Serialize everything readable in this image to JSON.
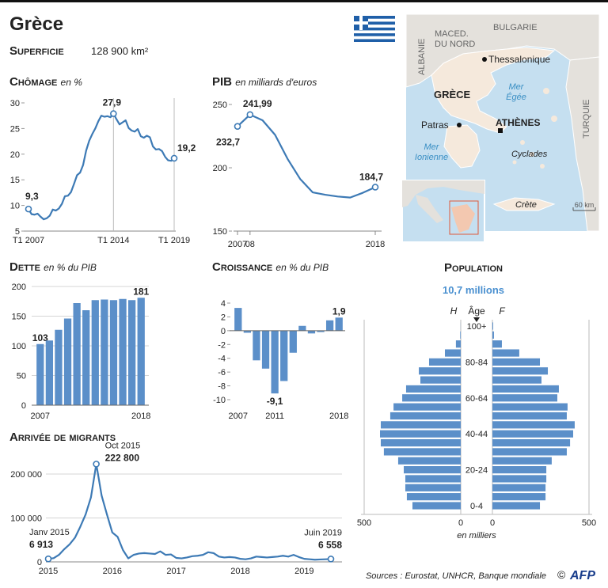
{
  "title": "Grèce",
  "area_label": "Superficie",
  "area_value": "128 900 km²",
  "map": {
    "north_macedonia": [
      "MACED.",
      "DU NORD"
    ],
    "bulgaria": "BULGARIE",
    "albania": "ALBANIE",
    "turkey": "TURQUIE",
    "greece": "GRÈCE",
    "thessaloniki": "Thessalonique",
    "patras": "Patras",
    "athens": "ATHÈNES",
    "aegean": [
      "Mer",
      "Égée"
    ],
    "ionian": [
      "Mer",
      "Ionienne"
    ],
    "cyclades": "Cyclades",
    "crete": "Crète",
    "scale": "60 km"
  },
  "chart_data": [
    {
      "type": "line",
      "title": "Chômage",
      "subtitle": "en %",
      "color": "#3d7ab5",
      "categories": [
        "T1 2007",
        null,
        null,
        null,
        null,
        null,
        null,
        null,
        null,
        null,
        null,
        null,
        null,
        null,
        null,
        null,
        null,
        null,
        null,
        null,
        null,
        null,
        null,
        null,
        null,
        null,
        null,
        null,
        "T1 2014",
        null,
        null,
        null,
        null,
        null,
        null,
        null,
        null,
        null,
        null,
        null,
        null,
        null,
        null,
        null,
        null,
        null,
        null,
        null,
        "T1 2019"
      ],
      "values": [
        9.3,
        8.3,
        8.2,
        8.4,
        7.8,
        7.3,
        7.5,
        8.0,
        9.2,
        9.0,
        9.4,
        10.3,
        11.8,
        11.9,
        12.6,
        14.2,
        15.9,
        16.4,
        17.9,
        20.7,
        22.6,
        23.9,
        25.0,
        26.4,
        27.5,
        27.3,
        27.4,
        27.2,
        27.9,
        26.8,
        25.8,
        26.2,
        26.6,
        25.1,
        24.6,
        24.4,
        24.9,
        23.5,
        23.2,
        23.6,
        23.3,
        21.5,
        20.9,
        21.0,
        20.6,
        19.5,
        18.8,
        18.7,
        19.2
      ],
      "value_labels": [
        "9,3",
        null,
        null,
        null,
        null,
        null,
        null,
        null,
        null,
        null,
        null,
        null,
        null,
        null,
        null,
        null,
        null,
        null,
        null,
        null,
        null,
        null,
        null,
        null,
        null,
        null,
        null,
        null,
        "27,9",
        null,
        null,
        null,
        null,
        null,
        null,
        null,
        null,
        null,
        null,
        null,
        null,
        null,
        null,
        null,
        null,
        null,
        null,
        null,
        "19,2"
      ],
      "ylim": [
        5,
        30
      ],
      "yticks": [
        5,
        10,
        15,
        20,
        25,
        30
      ],
      "grid": false
    },
    {
      "type": "line",
      "title": "PIB",
      "subtitle": "en milliards d'euros",
      "color": "#3d7ab5",
      "x": [
        2007,
        2008,
        2009,
        2010,
        2011,
        2012,
        2013,
        2014,
        2015,
        2016,
        2017,
        2018
      ],
      "values": [
        232.7,
        241.99,
        237.5,
        226,
        207,
        191.2,
        180.6,
        178.7,
        177.3,
        176.5,
        180.2,
        184.7
      ],
      "value_labels": [
        "232,7",
        "241,99",
        null,
        null,
        null,
        null,
        null,
        null,
        null,
        null,
        null,
        "184,7"
      ],
      "xlim": [
        2007,
        2018
      ],
      "xticks": [
        2007,
        {
          "value": 2008,
          "label": "08"
        },
        2018
      ],
      "ylim": [
        150,
        250
      ],
      "yticks": [
        150,
        200,
        250
      ],
      "grid": false
    },
    {
      "type": "bar",
      "title": "Dette",
      "subtitle": "en % du PIB",
      "color": "#5b8fc9",
      "categories": [
        "2007",
        null,
        null,
        null,
        null,
        null,
        null,
        null,
        null,
        null,
        null,
        "2018"
      ],
      "values": [
        103,
        109,
        127,
        146,
        172,
        160,
        177,
        178,
        177,
        179,
        177,
        181
      ],
      "value_labels": [
        "103",
        null,
        null,
        null,
        null,
        null,
        null,
        null,
        null,
        null,
        null,
        "181"
      ],
      "ylim": [
        0,
        200
      ],
      "yticks": [
        0,
        50,
        100,
        150,
        200
      ],
      "grid": true
    },
    {
      "type": "bar",
      "title": "Croissance",
      "subtitle": "en % du PIB",
      "color": "#5b8fc9",
      "categories": [
        "2007",
        null,
        null,
        null,
        "2011",
        null,
        null,
        null,
        null,
        null,
        null,
        "2018"
      ],
      "values": [
        3.3,
        -0.3,
        -4.3,
        -5.5,
        -9.1,
        -7.3,
        -3.2,
        0.7,
        -0.4,
        -0.2,
        1.5,
        1.9
      ],
      "value_labels": [
        null,
        null,
        null,
        null,
        "-9,1",
        null,
        null,
        null,
        null,
        null,
        null,
        "1,9"
      ],
      "ylim": [
        -10,
        4
      ],
      "yticks": [
        4,
        2,
        0,
        -2,
        -4,
        -6,
        -8,
        -10
      ],
      "grid": false
    },
    {
      "type": "pyramid",
      "title": "Population",
      "subtitle": "10,7 millions",
      "y_label": "Âge",
      "x_label": "en milliers",
      "categories": [
        "0-4",
        null,
        null,
        null,
        "20-24",
        null,
        null,
        null,
        "40-44",
        null,
        null,
        null,
        "60-64",
        null,
        null,
        null,
        "80-84",
        null,
        null,
        null,
        "100+"
      ],
      "series": [
        {
          "name": "H",
          "color": "#5b8fc9",
          "values": [
            250,
            279,
            287,
            287,
            295,
            324,
            398,
            414,
            418,
            414,
            365,
            348,
            303,
            283,
            209,
            217,
            164,
            82,
            25,
            3,
            0.5
          ]
        },
        {
          "name": "F",
          "color": "#5b8fc9",
          "values": [
            246,
            275,
            275,
            279,
            279,
            307,
            385,
            402,
            418,
            426,
            385,
            389,
            336,
            344,
            254,
            287,
            246,
            139,
            49,
            8,
            4
          ]
        }
      ],
      "xlim": [
        0,
        500
      ],
      "xticks": [
        0,
        500
      ]
    },
    {
      "type": "line",
      "title": "Arrivée de migrants",
      "color": "#3d7ab5",
      "categories": [
        "2015",
        null,
        null,
        null,
        null,
        null,
        null,
        null,
        null,
        null,
        null,
        null,
        "2016",
        null,
        null,
        null,
        null,
        null,
        null,
        null,
        null,
        null,
        null,
        null,
        "2017",
        null,
        null,
        null,
        null,
        null,
        null,
        null,
        null,
        null,
        null,
        null,
        "2018",
        null,
        null,
        null,
        null,
        null,
        null,
        null,
        null,
        null,
        null,
        null,
        "2019",
        null,
        null,
        null,
        null,
        null
      ],
      "values": [
        6913,
        8500,
        16000,
        29000,
        40000,
        55000,
        80000,
        108000,
        147000,
        222800,
        151000,
        108000,
        67000,
        57000,
        27000,
        8000,
        16000,
        19000,
        20000,
        19000,
        18000,
        24000,
        16000,
        17000,
        9000,
        8000,
        10000,
        13000,
        14000,
        16000,
        22000,
        20000,
        12000,
        10000,
        11000,
        10000,
        7000,
        6000,
        8000,
        12000,
        11000,
        10000,
        11000,
        12000,
        14000,
        12000,
        16000,
        11000,
        7000,
        6000,
        5000,
        5500,
        6000,
        6558
      ],
      "value_labels": [
        "6 913",
        null,
        null,
        null,
        null,
        null,
        null,
        null,
        null,
        "222 800",
        null,
        null,
        null,
        null,
        null,
        null,
        null,
        null,
        null,
        null,
        null,
        null,
        null,
        null,
        null,
        null,
        null,
        null,
        null,
        null,
        null,
        null,
        null,
        null,
        null,
        null,
        null,
        null,
        null,
        null,
        null,
        null,
        null,
        null,
        null,
        null,
        null,
        null,
        null,
        null,
        null,
        null,
        null,
        "6 558"
      ],
      "point_labels": [
        "Janv 2015",
        null,
        null,
        null,
        null,
        null,
        null,
        null,
        null,
        "Oct 2015",
        null,
        null,
        null,
        null,
        null,
        null,
        null,
        null,
        null,
        null,
        null,
        null,
        null,
        null,
        null,
        null,
        null,
        null,
        null,
        null,
        null,
        null,
        null,
        null,
        null,
        null,
        null,
        null,
        null,
        null,
        null,
        null,
        null,
        null,
        null,
        null,
        null,
        null,
        null,
        null,
        null,
        null,
        null,
        "Juin 2019"
      ],
      "ylim": [
        0,
        235000
      ],
      "yticks": [
        0,
        {
          "value": 100000,
          "label": "100 000"
        },
        {
          "value": 200000,
          "label": "200 000"
        }
      ],
      "grid": true
    }
  ],
  "source": "Sources : Eurostat, UNHCR, Banque mondiale",
  "credit_symbol": "©",
  "agency": "AFP"
}
